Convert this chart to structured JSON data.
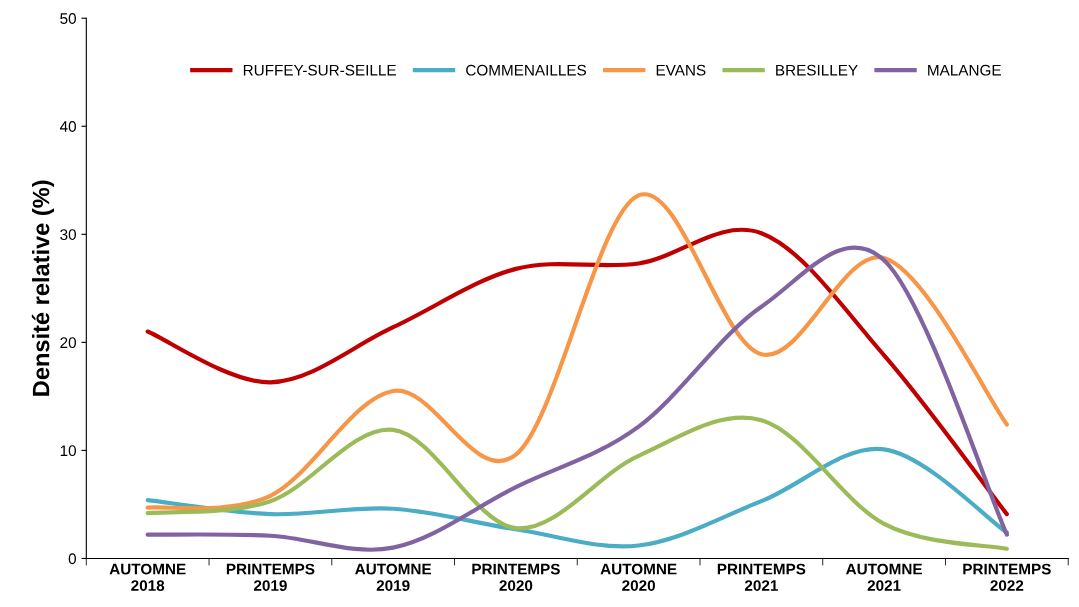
{
  "chart_data": {
    "type": "line",
    "ylabel": "Densité relative (%)",
    "categories": [
      "AUTOMNE\n2018",
      "PRINTEMPS\n2019",
      "AUTOMNE\n2019",
      "PRINTEMPS\n2020",
      "AUTOMNE\n2020",
      "PRINTEMPS\n2021",
      "AUTOMNE\n2021",
      "PRINTEMPS\n2022"
    ],
    "series": [
      {
        "name": "RUFFEY-SUR-SEILLE",
        "color": "#c00000",
        "values": [
          21,
          16.3,
          21.4,
          26.8,
          27.3,
          30.1,
          18.8,
          4.1
        ]
      },
      {
        "name": "COMMENAILLES",
        "color": "#4bacc6",
        "values": [
          5.4,
          4.1,
          4.6,
          2.7,
          1.2,
          5.3,
          10.1,
          2.4
        ]
      },
      {
        "name": "EVANS",
        "color": "#f79646",
        "values": [
          4.7,
          5.8,
          15.5,
          9.6,
          33.6,
          18.9,
          27.8,
          12.4
        ]
      },
      {
        "name": "BRESILLEY",
        "color": "#9bbb59",
        "values": [
          4.2,
          5.3,
          11.9,
          2.8,
          9.5,
          12.8,
          3.2,
          0.9
        ]
      },
      {
        "name": "MALANGE",
        "color": "#8064a2",
        "values": [
          2.2,
          2.1,
          1.0,
          6.6,
          12.2,
          23.3,
          27.6,
          2.2
        ]
      }
    ],
    "ylim": [
      0,
      50
    ],
    "yticks": [
      0,
      10,
      20,
      30,
      40,
      50
    ],
    "grid": false,
    "legend": "top",
    "marker": "none",
    "line_style": "solid"
  }
}
